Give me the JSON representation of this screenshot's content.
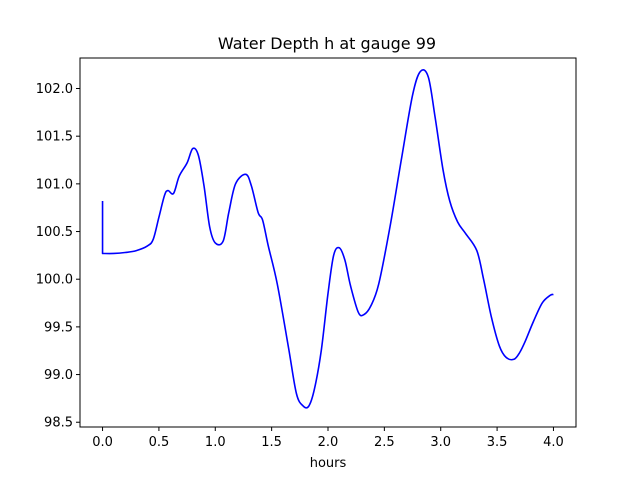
{
  "chart_data": {
    "type": "line",
    "title": "Water Depth h at gauge 99",
    "xlabel": "hours",
    "ylabel": "",
    "xlim": [
      -0.2,
      4.2
    ],
    "ylim": [
      98.45,
      102.32
    ],
    "grid": false,
    "xticks": [
      0.0,
      0.5,
      1.0,
      1.5,
      2.0,
      2.5,
      3.0,
      3.5,
      4.0
    ],
    "xtick_labels": [
      "0.0",
      "0.5",
      "1.0",
      "1.5",
      "2.0",
      "2.5",
      "3.0",
      "3.5",
      "4.0"
    ],
    "yticks": [
      98.5,
      99.0,
      99.5,
      100.0,
      100.5,
      101.0,
      101.5,
      102.0
    ],
    "ytick_labels": [
      "98.5",
      "99.0",
      "99.5",
      "100.0",
      "100.5",
      "101.0",
      "101.5",
      "102.0"
    ],
    "series": [
      {
        "color": "#0000ff",
        "x": [
          0.0,
          0.0,
          0.1,
          0.2,
          0.3,
          0.4,
          0.45,
          0.5,
          0.55,
          0.58,
          0.63,
          0.68,
          0.75,
          0.8,
          0.85,
          0.9,
          0.95,
          1.0,
          1.07,
          1.12,
          1.18,
          1.27,
          1.32,
          1.38,
          1.42,
          1.47,
          1.55,
          1.65,
          1.72,
          1.78,
          1.83,
          1.88,
          1.94,
          2.0,
          2.05,
          2.1,
          2.15,
          2.2,
          2.27,
          2.32,
          2.38,
          2.45,
          2.55,
          2.65,
          2.75,
          2.82,
          2.89,
          2.95,
          3.02,
          3.08,
          3.15,
          3.22,
          3.32,
          3.38,
          3.45,
          3.52,
          3.58,
          3.65,
          3.7,
          3.75,
          3.82,
          3.9,
          3.97,
          4.0
        ],
        "y": [
          100.82,
          100.27,
          100.27,
          100.28,
          100.3,
          100.35,
          100.42,
          100.65,
          100.88,
          100.93,
          100.9,
          101.08,
          101.22,
          101.37,
          101.3,
          100.98,
          100.55,
          100.38,
          100.4,
          100.7,
          101.0,
          101.1,
          100.98,
          100.7,
          100.62,
          100.35,
          99.95,
          99.28,
          98.8,
          98.67,
          98.67,
          98.85,
          99.25,
          99.85,
          100.25,
          100.33,
          100.2,
          99.93,
          99.65,
          99.63,
          99.72,
          99.95,
          100.55,
          101.25,
          101.93,
          102.18,
          102.12,
          101.7,
          101.15,
          100.82,
          100.6,
          100.48,
          100.3,
          100.0,
          99.6,
          99.3,
          99.18,
          99.16,
          99.23,
          99.35,
          99.55,
          99.75,
          99.83,
          99.84
        ]
      }
    ]
  }
}
